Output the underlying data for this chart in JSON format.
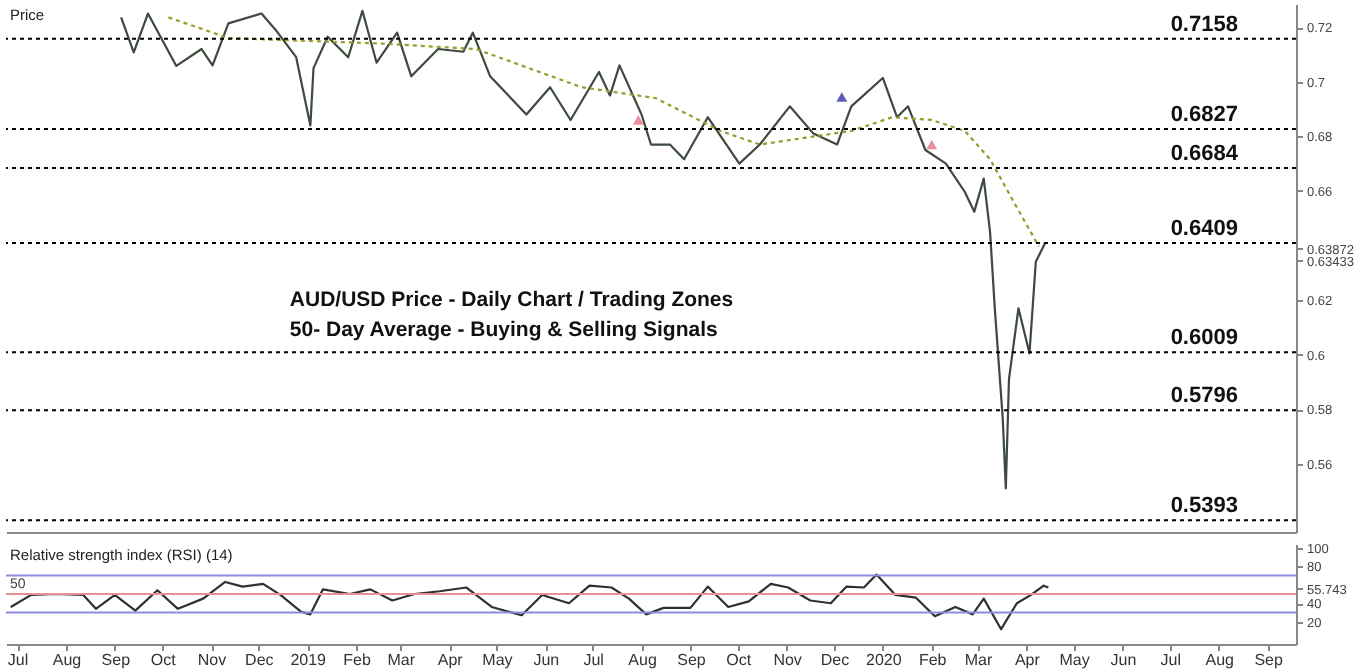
{
  "chart_data": [
    {
      "type": "line",
      "title": "Price",
      "xlim": [
        "2018-06-24",
        "2020-09-19"
      ],
      "ylim": [
        0.535,
        0.7285
      ],
      "yticks": [
        0.72,
        0.7,
        0.68,
        0.66,
        {
          "value": 0.63872,
          "label": "0.63872"
        },
        {
          "value": 0.63433,
          "label": "0.63433"
        },
        0.62,
        0.6,
        0.58,
        0.56
      ],
      "tick_labels": "y",
      "grid": false,
      "annotations": [
        "AUD/USD Price - Daily Chart / Trading Zones",
        "50- Day Average - Buying & Selling Signals"
      ],
      "ref_lines": [
        {
          "axis": "y",
          "value": 0.7158,
          "label": "0.7158",
          "color": "#000000",
          "line_style": "dotted"
        },
        {
          "axis": "y",
          "value": 0.6827,
          "label": "0.6827",
          "color": "#000000",
          "line_style": "dotted"
        },
        {
          "axis": "y",
          "value": 0.6684,
          "label": "0.6684",
          "color": "#000000",
          "line_style": "dotted"
        },
        {
          "axis": "y",
          "value": 0.6409,
          "label": "0.6409",
          "color": "#000000",
          "line_style": "dotted"
        },
        {
          "axis": "y",
          "value": 0.6009,
          "label": "0.6009",
          "color": "#000000",
          "line_style": "dotted"
        },
        {
          "axis": "y",
          "value": 0.5796,
          "label": "0.5796",
          "color": "#000000",
          "line_style": "dotted"
        },
        {
          "axis": "y",
          "value": 0.5393,
          "label": "0.5393",
          "color": "#000000",
          "line_style": "dotted"
        }
      ],
      "series": [
        {
          "color": "#3d4a3d",
          "line_style": "solid",
          "x": [
            "2018-09-05",
            "2018-09-13",
            "2018-09-22",
            "2018-10-10",
            "2018-10-26",
            "2018-11-02",
            "2018-11-12",
            "2018-12-03",
            "2018-12-12",
            "2018-12-25",
            "2019-01-03",
            "2019-01-05",
            "2019-01-14",
            "2019-01-27",
            "2019-02-05",
            "2019-02-14",
            "2019-02-27",
            "2019-03-08",
            "2019-03-25",
            "2019-04-10",
            "2019-04-16",
            "2019-04-27",
            "2019-05-20",
            "2019-06-04",
            "2019-06-17",
            "2019-07-05",
            "2019-07-12",
            "2019-07-18",
            "2019-08-01",
            "2019-08-07",
            "2019-08-19",
            "2019-08-28",
            "2019-09-12",
            "2019-10-02",
            "2019-10-15",
            "2019-11-03",
            "2019-11-18",
            "2019-12-03",
            "2019-12-12",
            "2020-01-01",
            "2020-01-10",
            "2020-01-17",
            "2020-01-28",
            "2020-02-10",
            "2020-02-22",
            "2020-02-28",
            "2020-03-05",
            "2020-03-09",
            "2020-03-12",
            "2020-03-17",
            "2020-03-19",
            "2020-03-21",
            "2020-03-27",
            "2020-04-03",
            "2020-04-07",
            "2020-04-13"
          ],
          "values": [
            0.7236,
            0.7108,
            0.725,
            0.7058,
            0.712,
            0.706,
            0.7214,
            0.725,
            0.719,
            0.709,
            0.684,
            0.705,
            0.7165,
            0.709,
            0.726,
            0.707,
            0.718,
            0.702,
            0.712,
            0.711,
            0.718,
            0.702,
            0.688,
            0.698,
            0.686,
            0.7036,
            0.695,
            0.706,
            0.688,
            0.677,
            0.677,
            0.6716,
            0.687,
            0.67,
            0.677,
            0.691,
            0.681,
            0.677,
            0.691,
            0.7014,
            0.687,
            0.691,
            0.675,
            0.67,
            0.6596,
            0.6524,
            0.6645,
            0.645,
            0.617,
            0.577,
            0.551,
            0.591,
            0.617,
            0.6005,
            0.634,
            0.641
          ]
        },
        {
          "color": "#9a9a2a",
          "line_style": "dotted",
          "x": [
            "2018-10-05",
            "2018-11-12",
            "2019-02-17",
            "2019-04-18",
            "2019-06-24",
            "2019-08-10",
            "2019-09-20",
            "2019-10-15",
            "2019-12-12",
            "2020-01-07",
            "2020-02-01",
            "2020-02-22",
            "2020-03-09",
            "2020-03-23",
            "2020-04-09"
          ],
          "values": [
            0.7236,
            0.716,
            0.714,
            0.712,
            0.698,
            0.694,
            0.682,
            0.677,
            0.682,
            0.687,
            0.686,
            0.682,
            0.6716,
            0.657,
            0.6396
          ]
        },
        {
          "type": "scatter",
          "marker": "triangle",
          "color": "#1a1a9a",
          "x": [
            "2019-12-06"
          ],
          "values": [
            0.6944
          ]
        },
        {
          "type": "scatter",
          "marker": "triangle",
          "color": "#e06070",
          "x": [
            "2019-07-30",
            "2020-02-01"
          ],
          "values": [
            0.686,
            0.677
          ]
        }
      ]
    },
    {
      "type": "line",
      "title": "Relative strength index (RSI) (14)",
      "xlim": [
        "2018-06-24",
        "2020-09-19"
      ],
      "ylim": [
        -4,
        104
      ],
      "yticks": [
        20,
        40,
        {
          "value": 55.743,
          "label": "55.743"
        },
        80,
        100
      ],
      "grid": false,
      "xticks": [
        {
          "value": "2018-07-01",
          "label": "Jul"
        },
        {
          "value": "2018-08-01",
          "label": "Aug"
        },
        {
          "value": "2018-09-01",
          "label": "Sep"
        },
        {
          "value": "2018-10-01",
          "label": "Oct"
        },
        {
          "value": "2018-11-01",
          "label": "Nov"
        },
        {
          "value": "2018-12-01",
          "label": "Dec"
        },
        {
          "value": "2019-01-01",
          "label": "2019"
        },
        {
          "value": "2019-02-01",
          "label": "Feb"
        },
        {
          "value": "2019-03-01",
          "label": "Mar"
        },
        {
          "value": "2019-04-01",
          "label": "Apr"
        },
        {
          "value": "2019-05-01",
          "label": "May"
        },
        {
          "value": "2019-06-01",
          "label": "Jun"
        },
        {
          "value": "2019-07-01",
          "label": "Jul"
        },
        {
          "value": "2019-08-01",
          "label": "Aug"
        },
        {
          "value": "2019-09-01",
          "label": "Sep"
        },
        {
          "value": "2019-10-01",
          "label": "Oct"
        },
        {
          "value": "2019-11-01",
          "label": "Nov"
        },
        {
          "value": "2019-12-01",
          "label": "Dec"
        },
        {
          "value": "2020-01-01",
          "label": "2020"
        },
        {
          "value": "2020-02-01",
          "label": "Feb"
        },
        {
          "value": "2020-03-01",
          "label": "Mar"
        },
        {
          "value": "2020-04-01",
          "label": "Apr"
        },
        {
          "value": "2020-05-01",
          "label": "May"
        },
        {
          "value": "2020-06-01",
          "label": "Jun"
        },
        {
          "value": "2020-07-01",
          "label": "Jul"
        },
        {
          "value": "2020-08-01",
          "label": "Aug"
        },
        {
          "value": "2020-09-01",
          "label": "Sep"
        }
      ],
      "annotations": [
        {
          "text": "50",
          "y": 50
        }
      ],
      "ref_lines": [
        {
          "axis": "y",
          "value": 70,
          "color": "#8c8ce0",
          "line_style": "solid"
        },
        {
          "axis": "y",
          "value": 50,
          "color": "#e89090",
          "line_style": "solid"
        },
        {
          "axis": "y",
          "value": 30,
          "color": "#8c8ce0",
          "line_style": "solid"
        }
      ],
      "series": [
        {
          "color": "#303030",
          "line_style": "solid",
          "x": [
            "2018-06-27",
            "2018-07-10",
            "2018-07-26",
            "2018-08-12",
            "2018-08-20",
            "2018-09-01",
            "2018-09-14",
            "2018-09-28",
            "2018-10-11",
            "2018-10-27",
            "2018-11-10",
            "2018-11-21",
            "2018-12-04",
            "2018-12-15",
            "2018-12-28",
            "2019-01-03",
            "2019-01-11",
            "2019-01-28",
            "2019-02-10",
            "2019-02-24",
            "2019-03-10",
            "2019-03-26",
            "2019-04-12",
            "2019-04-28",
            "2019-05-17",
            "2019-05-30",
            "2019-06-16",
            "2019-06-29",
            "2019-07-13",
            "2019-07-24",
            "2019-08-04",
            "2019-08-15",
            "2019-09-01",
            "2019-09-12",
            "2019-09-25",
            "2019-10-08",
            "2019-10-22",
            "2019-11-02",
            "2019-11-16",
            "2019-11-29",
            "2019-12-09",
            "2019-12-20",
            "2019-12-28",
            "2020-01-09",
            "2020-01-22",
            "2020-02-03",
            "2020-02-16",
            "2020-02-27",
            "2020-03-05",
            "2020-03-16",
            "2020-03-26",
            "2020-04-04",
            "2020-04-12",
            "2020-04-15"
          ],
          "values": [
            36,
            49,
            50,
            49,
            34,
            49,
            32,
            54,
            34,
            45,
            63,
            58,
            61,
            49,
            31,
            28,
            55,
            50,
            55,
            43,
            50,
            53,
            57,
            36,
            27,
            49,
            40,
            59,
            57,
            45,
            28,
            35,
            35,
            58,
            36,
            42,
            61,
            57,
            43,
            40,
            58,
            57,
            71,
            49,
            46,
            26,
            36,
            28,
            45,
            12,
            40,
            49,
            59,
            57
          ]
        }
      ]
    }
  ]
}
